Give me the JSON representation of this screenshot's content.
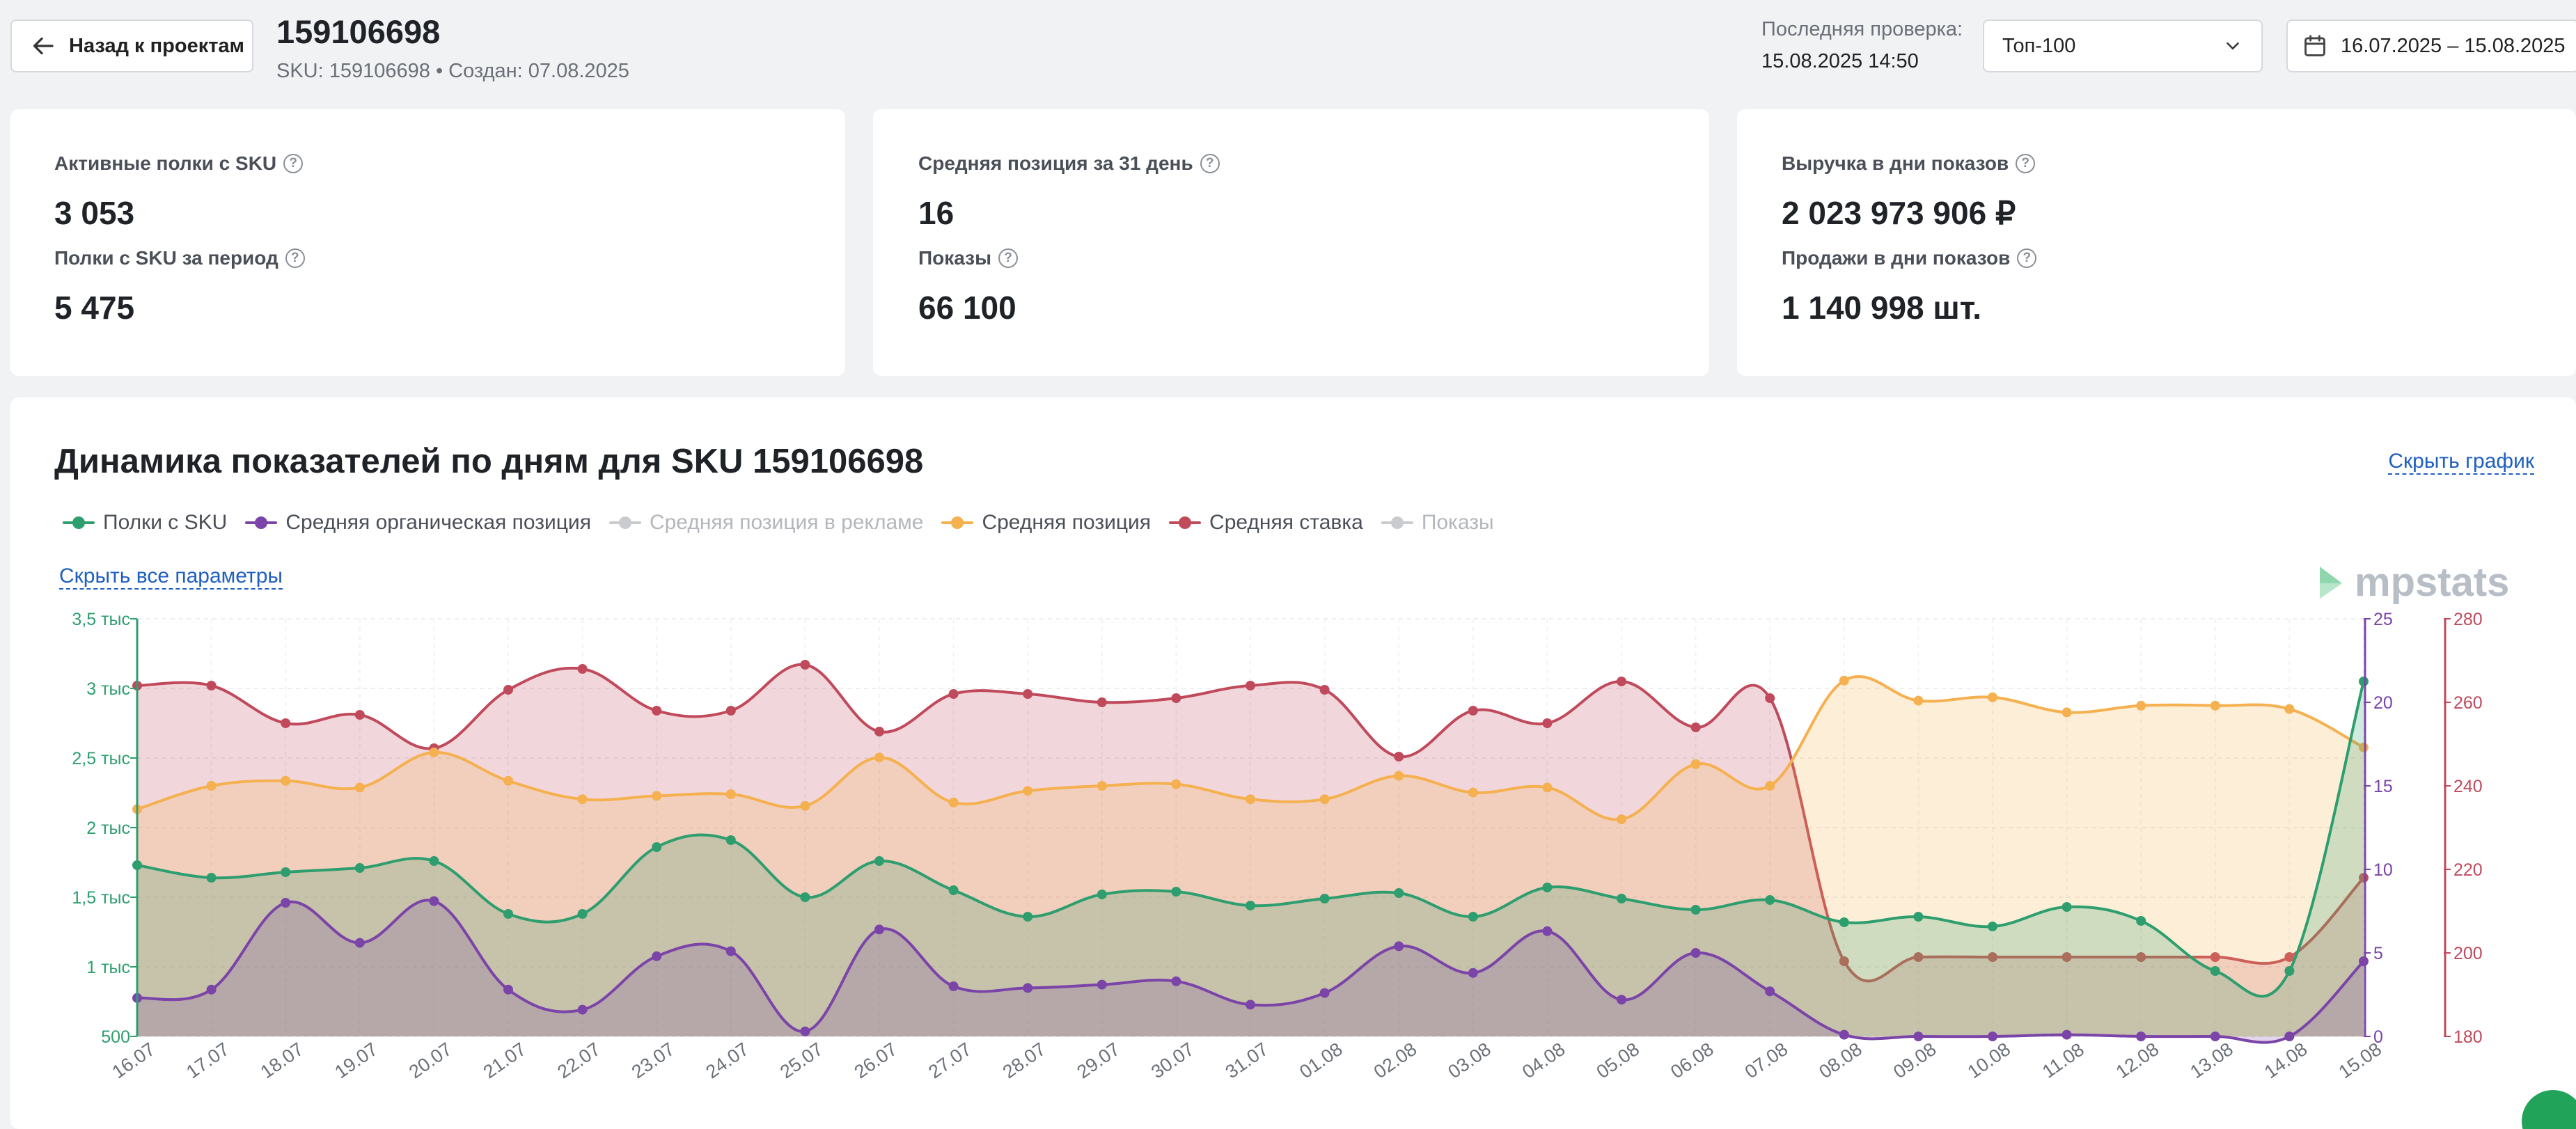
{
  "header": {
    "back_label": "Назад к проектам",
    "sku_title": "159106698",
    "sku_meta": "SKU: 159106698 • Создан: 07.08.2025",
    "last_check_label": "Последняя проверка:",
    "last_check_value": "15.08.2025 14:50",
    "top_select": "Топ-100",
    "date_range": "16.07.2025 – 15.08.2025"
  },
  "cards": [
    {
      "label1": "Активные полки с SKU",
      "value1": "3 053",
      "label2": "Полки с SKU за период",
      "value2": "5 475"
    },
    {
      "label1": "Средняя позиция за 31 день",
      "value1": "16",
      "label2": "Показы",
      "value2": "66 100"
    },
    {
      "label1": "Выручка в дни показов",
      "value1": "2 023 973 906 ₽",
      "label2": "Продажи в дни показов",
      "value2": "1 140 998 шт."
    }
  ],
  "chart_panel": {
    "title": "Динамика показателей по дням для SKU 159106698",
    "hide_chart_label": "Скрыть график",
    "hide_params_label": "Скрыть все параметры",
    "watermark": "mpstats"
  },
  "legend": [
    {
      "name": "Полки с SKU",
      "color": "#2e9e6e",
      "active": true
    },
    {
      "name": "Средняя органическая позиция",
      "color": "#7b44a8",
      "active": true
    },
    {
      "name": "Средняя позиция в рекламе",
      "color": "#c9cbcf",
      "active": false
    },
    {
      "name": "Средняя позиция",
      "color": "#f5b04f",
      "active": true
    },
    {
      "name": "Средняя ставка",
      "color": "#c04a5c",
      "active": true
    },
    {
      "name": "Показы",
      "color": "#c9cbcf",
      "active": false
    }
  ],
  "chart_data": {
    "type": "area",
    "x": [
      "16.07",
      "17.07",
      "18.07",
      "19.07",
      "20.07",
      "21.07",
      "22.07",
      "23.07",
      "24.07",
      "25.07",
      "26.07",
      "27.07",
      "28.07",
      "29.07",
      "30.07",
      "31.07",
      "01.08",
      "02.08",
      "03.08",
      "04.08",
      "05.08",
      "06.08",
      "07.08",
      "08.08",
      "09.08",
      "10.08",
      "11.08",
      "12.08",
      "13.08",
      "14.08",
      "15.08"
    ],
    "axes": {
      "left": {
        "ticks": [
          "500",
          "1 тыс",
          "1,5 тыс",
          "2 тыс",
          "2,5 тыс",
          "3 тыс",
          "3,5 тыс"
        ],
        "ylim": [
          500,
          3500
        ],
        "color": "#2e9e6e"
      },
      "right1": {
        "ticks": [
          "0",
          "5",
          "10",
          "15",
          "20",
          "25"
        ],
        "ylim": [
          0,
          25
        ],
        "color": "#7b44a8"
      },
      "right2": {
        "ticks": [
          "180",
          "200",
          "220",
          "240",
          "260",
          "280"
        ],
        "ylim": [
          180,
          280
        ],
        "color": "#c04a5c"
      }
    },
    "series": [
      {
        "name": "Средняя ставка",
        "axis": "right2",
        "color": "#c04a5c",
        "values": [
          264,
          264,
          255,
          257,
          249,
          263,
          268,
          258,
          258,
          269,
          253,
          262,
          262,
          260,
          261,
          264,
          263,
          247,
          258,
          255,
          265,
          254,
          261,
          198,
          199,
          199,
          199,
          199,
          199,
          199,
          218
        ]
      },
      {
        "name": "Средняя позиция",
        "axis": "right1",
        "color": "#f5b04f",
        "values": [
          13.6,
          15,
          15.3,
          14.9,
          17,
          15.3,
          14.2,
          14.4,
          14.5,
          13.8,
          16.7,
          14,
          14.7,
          15,
          15.1,
          14.2,
          14.2,
          15.6,
          14.6,
          14.9,
          13,
          16.3,
          15,
          21.3,
          20.1,
          20.3,
          19.4,
          19.8,
          19.8,
          19.6,
          17.3
        ]
      },
      {
        "name": "Полки с SKU",
        "axis": "left",
        "color": "#2e9e6e",
        "values": [
          1730,
          1640,
          1680,
          1710,
          1760,
          1380,
          1380,
          1860,
          1910,
          1500,
          1760,
          1550,
          1360,
          1520,
          1540,
          1440,
          1490,
          1530,
          1360,
          1570,
          1490,
          1410,
          1480,
          1320,
          1360,
          1290,
          1430,
          1330,
          970,
          970,
          3050
        ]
      },
      {
        "name": "Средняя органическая позиция",
        "axis": "right1",
        "color": "#7b44a8",
        "values": [
          2.3,
          2.8,
          8,
          5.6,
          8.1,
          2.8,
          1.6,
          4.8,
          5.1,
          0.3,
          6.4,
          3,
          2.9,
          3.1,
          3.3,
          1.9,
          2.6,
          5.4,
          3.8,
          6.3,
          2.2,
          5,
          2.7,
          0.1,
          0,
          0,
          0.1,
          0,
          0,
          0,
          4.5
        ]
      }
    ]
  }
}
